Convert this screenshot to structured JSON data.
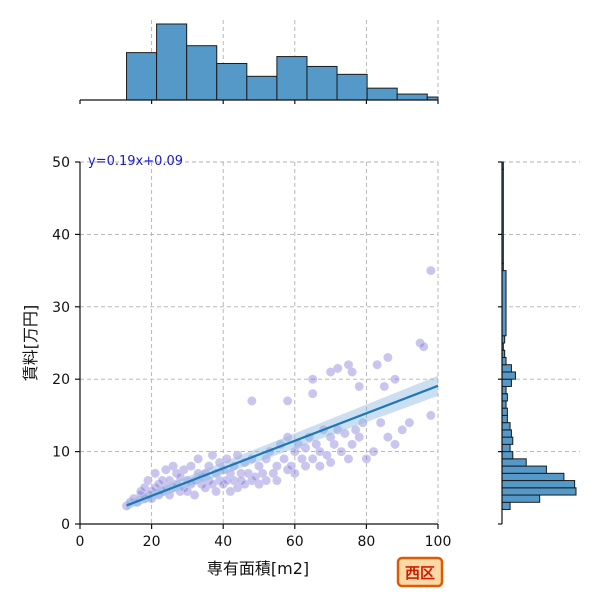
{
  "chart_data": {
    "type": "scatter",
    "title": "",
    "xlabel": "専有面積[m2]",
    "ylabel": "賃料[万円]",
    "xlim": [
      0,
      100
    ],
    "ylim": [
      0,
      50
    ],
    "xticks": [
      "0",
      "20",
      "40",
      "60",
      "80",
      "100"
    ],
    "yticks": [
      "0",
      "10",
      "20",
      "30",
      "40",
      "50"
    ],
    "grid": true,
    "annotation": "y=0.19x+0.09",
    "badge": "西区",
    "colors": {
      "points": "#6a5acd",
      "regression": "#1f77b4",
      "hist": "#5599c8",
      "badge_border": "#e05a00",
      "badge_text": "#cc1f00"
    },
    "regression": {
      "slope": 0.19,
      "intercept": 0.09,
      "x_range": [
        13,
        100
      ]
    },
    "points": [
      [
        13,
        2.5
      ],
      [
        14,
        3
      ],
      [
        15,
        3.5
      ],
      [
        16,
        3
      ],
      [
        17,
        4
      ],
      [
        17,
        4.5
      ],
      [
        18,
        3.5
      ],
      [
        18,
        5
      ],
      [
        19,
        4
      ],
      [
        19,
        6
      ],
      [
        20,
        4.5
      ],
      [
        20,
        3.5
      ],
      [
        21,
        5
      ],
      [
        21,
        7
      ],
      [
        22,
        4
      ],
      [
        22,
        5.5
      ],
      [
        23,
        6
      ],
      [
        23,
        4.5
      ],
      [
        24,
        5
      ],
      [
        24,
        7.5
      ],
      [
        25,
        4
      ],
      [
        25,
        6
      ],
      [
        26,
        5
      ],
      [
        26,
        8
      ],
      [
        27,
        5.5
      ],
      [
        27,
        7
      ],
      [
        28,
        4.5
      ],
      [
        28,
        6.5
      ],
      [
        29,
        5
      ],
      [
        29,
        7.5
      ],
      [
        30,
        6
      ],
      [
        30,
        4.5
      ],
      [
        31,
        5.5
      ],
      [
        31,
        8
      ],
      [
        32,
        6
      ],
      [
        32,
        4
      ],
      [
        33,
        7
      ],
      [
        33,
        9
      ],
      [
        34,
        5.5
      ],
      [
        34,
        6.5
      ],
      [
        35,
        7
      ],
      [
        35,
        5
      ],
      [
        36,
        8
      ],
      [
        36,
        6
      ],
      [
        37,
        5.5
      ],
      [
        37,
        9.5
      ],
      [
        38,
        7
      ],
      [
        38,
        4.5
      ],
      [
        39,
        6
      ],
      [
        39,
        8.5
      ],
      [
        40,
        7.5
      ],
      [
        40,
        5.5
      ],
      [
        41,
        6
      ],
      [
        41,
        9
      ],
      [
        42,
        7
      ],
      [
        42,
        4.5
      ],
      [
        43,
        8
      ],
      [
        43,
        6
      ],
      [
        44,
        5
      ],
      [
        44,
        9.5
      ],
      [
        45,
        7
      ],
      [
        45,
        6
      ],
      [
        46,
        8.5
      ],
      [
        46,
        5.5
      ],
      [
        47,
        7
      ],
      [
        48,
        6
      ],
      [
        48,
        9
      ],
      [
        49,
        6.5
      ],
      [
        50,
        8
      ],
      [
        50,
        5.5
      ],
      [
        51,
        7
      ],
      [
        52,
        6
      ],
      [
        52,
        9
      ],
      [
        53,
        10
      ],
      [
        54,
        7
      ],
      [
        55,
        8
      ],
      [
        55,
        6
      ],
      [
        56,
        11
      ],
      [
        57,
        9
      ],
      [
        58,
        7.5
      ],
      [
        58,
        12
      ],
      [
        59,
        8
      ],
      [
        60,
        10
      ],
      [
        60,
        7
      ],
      [
        61,
        11
      ],
      [
        62,
        9
      ],
      [
        63,
        10.5
      ],
      [
        63,
        8
      ],
      [
        64,
        12
      ],
      [
        65,
        9
      ],
      [
        65,
        20
      ],
      [
        66,
        11
      ],
      [
        67,
        10
      ],
      [
        67,
        8
      ],
      [
        68,
        13
      ],
      [
        69,
        9.5
      ],
      [
        70,
        12
      ],
      [
        70,
        8.5
      ],
      [
        71,
        11
      ],
      [
        72,
        13
      ],
      [
        73,
        10
      ],
      [
        74,
        12.5
      ],
      [
        75,
        9
      ],
      [
        76,
        11
      ],
      [
        77,
        13
      ],
      [
        78,
        12
      ],
      [
        79,
        14
      ],
      [
        80,
        9
      ],
      [
        82,
        10
      ],
      [
        84,
        14
      ],
      [
        86,
        12
      ],
      [
        88,
        11
      ],
      [
        90,
        13
      ],
      [
        92,
        14
      ],
      [
        95,
        25
      ],
      [
        96,
        24.5
      ],
      [
        98,
        35
      ],
      [
        98,
        15
      ],
      [
        48,
        17
      ],
      [
        58,
        17
      ],
      [
        65,
        18
      ],
      [
        70,
        21
      ],
      [
        72,
        21.5
      ],
      [
        75,
        22
      ],
      [
        76,
        21
      ],
      [
        78,
        19
      ],
      [
        83,
        22
      ],
      [
        86,
        23
      ],
      [
        88,
        20
      ],
      [
        85,
        19
      ]
    ],
    "hist_x": {
      "bin_edges": [
        13,
        21.4,
        29.8,
        38.2,
        46.6,
        55,
        63.4,
        71.8,
        80.2,
        88.6,
        97,
        100
      ],
      "counts": [
        48,
        77,
        55,
        37,
        24,
        44,
        34,
        26,
        12,
        6,
        3
      ]
    },
    "hist_y": {
      "bin_edges": [
        2,
        3,
        4,
        5,
        6,
        7,
        8,
        9,
        10,
        11,
        12,
        13,
        14,
        15,
        16,
        17,
        18,
        19,
        20,
        21,
        22,
        23,
        24,
        25,
        26,
        35,
        36,
        49,
        50
      ],
      "counts": [
        6,
        28,
        55,
        54,
        46,
        33,
        18,
        8,
        6,
        8,
        7,
        6,
        4,
        4,
        3,
        4,
        3,
        7,
        10,
        7,
        3,
        2,
        1,
        2,
        3,
        1,
        1,
        1
      ]
    }
  }
}
